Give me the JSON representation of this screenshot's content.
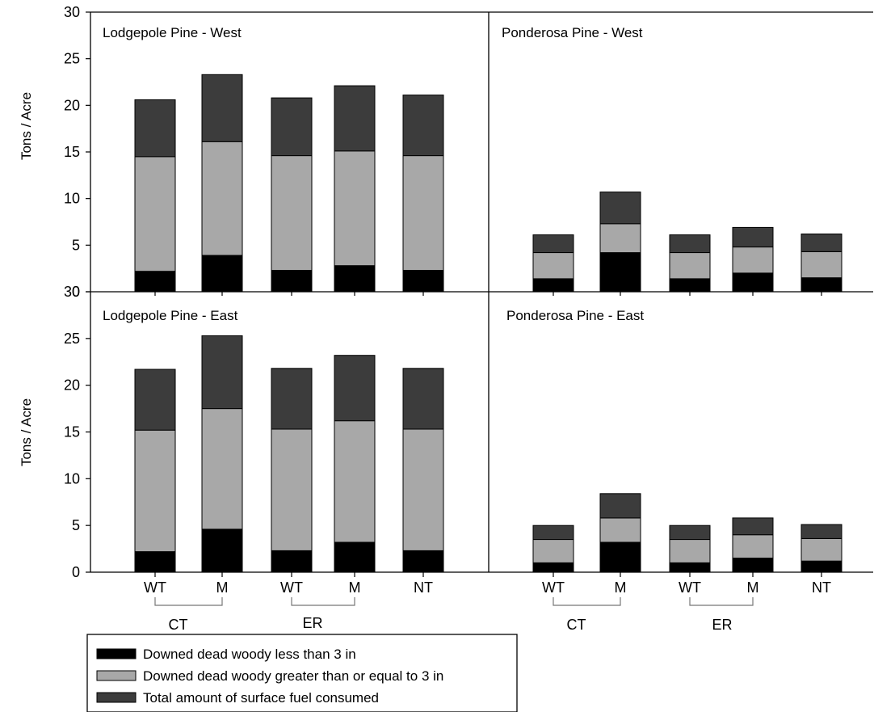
{
  "chart_data": {
    "type": "bar",
    "stacked": true,
    "ylabel": "Tons / Acre",
    "ylim": [
      0,
      30
    ],
    "yticks": [
      0,
      5,
      10,
      15,
      20,
      25,
      30
    ],
    "categories": [
      "WT",
      "M",
      "WT",
      "M",
      "NT"
    ],
    "groups": [
      {
        "label": "CT",
        "categories": [
          0,
          1
        ]
      },
      {
        "label": "ER",
        "categories": [
          2,
          3
        ]
      }
    ],
    "legend": {
      "position": "bottom-left",
      "entries": [
        {
          "label": "Downed dead woody less than 3 in",
          "color": "#000000"
        },
        {
          "label": "Downed dead woody greater than or equal to 3 in",
          "color": "#a8a8a8"
        },
        {
          "label": "Total amount of surface fuel consumed",
          "color": "#3c3c3c"
        }
      ]
    },
    "panels": [
      {
        "title": "Lodgepole Pine - West",
        "series": [
          {
            "values": [
              2.2,
              3.9,
              2.3,
              2.8,
              2.3
            ]
          },
          {
            "values": [
              12.3,
              12.2,
              12.3,
              12.3,
              12.3
            ]
          },
          {
            "values": [
              6.1,
              7.2,
              6.2,
              7.0,
              6.5
            ]
          }
        ]
      },
      {
        "title": "Ponderosa Pine - West",
        "series": [
          {
            "values": [
              1.4,
              4.2,
              1.4,
              2.0,
              1.5
            ]
          },
          {
            "values": [
              2.8,
              3.1,
              2.8,
              2.8,
              2.8
            ]
          },
          {
            "values": [
              1.9,
              3.4,
              1.9,
              2.1,
              1.9
            ]
          }
        ]
      },
      {
        "title": "Lodgepole Pine - East",
        "series": [
          {
            "values": [
              2.2,
              4.6,
              2.3,
              3.2,
              2.3
            ]
          },
          {
            "values": [
              13.0,
              12.9,
              13.0,
              13.0,
              13.0
            ]
          },
          {
            "values": [
              6.5,
              7.8,
              6.5,
              7.0,
              6.5
            ]
          }
        ]
      },
      {
        "title": "Ponderosa Pine - East",
        "series": [
          {
            "values": [
              1.0,
              3.2,
              1.0,
              1.5,
              1.2
            ]
          },
          {
            "values": [
              2.5,
              2.6,
              2.5,
              2.5,
              2.4
            ]
          },
          {
            "values": [
              1.5,
              2.6,
              1.5,
              1.8,
              1.5
            ]
          }
        ]
      }
    ]
  }
}
